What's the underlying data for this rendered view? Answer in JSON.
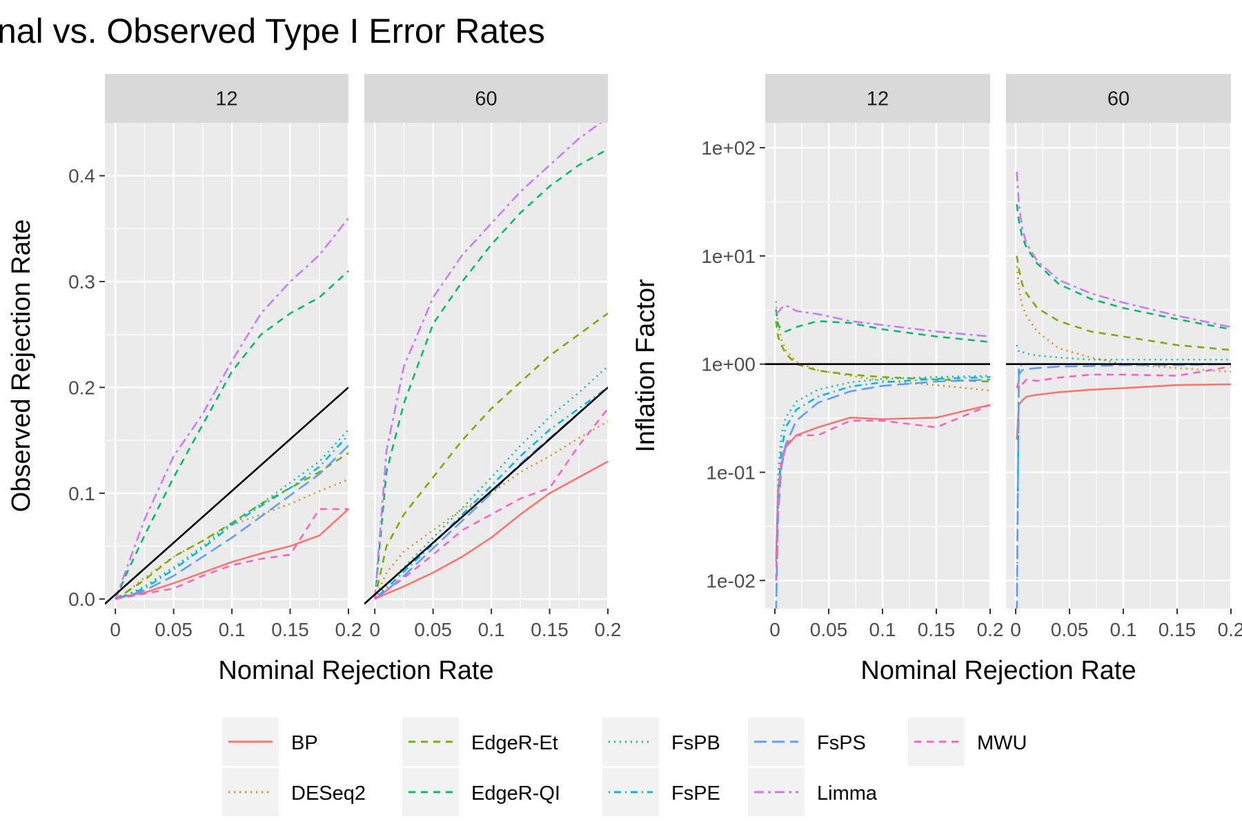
{
  "title": "nal vs. Observed Type I Error Rates",
  "legend": [
    {
      "label": "BP",
      "color": "#F8766D",
      "dash": "solid"
    },
    {
      "label": "DESeq2",
      "color": "#CD9600",
      "dash": "dotted"
    },
    {
      "label": "EdgeR-Et",
      "color": "#7CAE00",
      "dash": "dashed"
    },
    {
      "label": "EdgeR-QI",
      "color": "#00BE67",
      "dash": "dashed"
    },
    {
      "label": "FsPB",
      "color": "#00C19A",
      "dash": "dotted"
    },
    {
      "label": "FsPE",
      "color": "#00B8E7",
      "dash": "dotdash"
    },
    {
      "label": "FsPS",
      "color": "#619CFF",
      "dash": "longdash"
    },
    {
      "label": "Limma",
      "color": "#C77CFF",
      "dash": "twodash"
    },
    {
      "label": "MWU",
      "color": "#FF61C3",
      "dash": "dashed"
    }
  ],
  "chart_data": [
    {
      "type": "line",
      "panel": "left",
      "facets": [
        "12",
        "60"
      ],
      "xlabel": "Nominal Rejection Rate",
      "ylabel": "Observed Rejection Rate",
      "xlim": [
        -0.009,
        0.2
      ],
      "ylim": [
        -0.009,
        0.45
      ],
      "x_ticks": [
        "0",
        "0.05",
        "0.1",
        "0.15",
        "0.2"
      ],
      "y_ticks": [
        "0.0",
        "0.1",
        "0.2",
        "0.3",
        "0.4"
      ],
      "reference_line": "y = x",
      "x": [
        0,
        0.01,
        0.025,
        0.05,
        0.075,
        0.1,
        0.125,
        0.15,
        0.175,
        0.2
      ],
      "facet_series": {
        "12": [
          {
            "name": "BP",
            "values": [
              0,
              0.003,
              0.006,
              0.015,
              0.025,
              0.035,
              0.043,
              0.05,
              0.06,
              0.085
            ]
          },
          {
            "name": "DESeq2",
            "values": [
              0,
              0.007,
              0.02,
              0.04,
              0.055,
              0.07,
              0.08,
              0.09,
              0.102,
              0.113
            ]
          },
          {
            "name": "EdgeR-Et",
            "values": [
              0,
              0.007,
              0.018,
              0.04,
              0.055,
              0.072,
              0.09,
              0.105,
              0.12,
              0.138
            ]
          },
          {
            "name": "EdgeR-QI",
            "values": [
              0,
              0.025,
              0.06,
              0.115,
              0.165,
              0.215,
              0.25,
              0.27,
              0.285,
              0.31
            ]
          },
          {
            "name": "FsPB",
            "values": [
              0,
              0.004,
              0.012,
              0.03,
              0.05,
              0.072,
              0.09,
              0.11,
              0.13,
              0.16
            ]
          },
          {
            "name": "FsPE",
            "values": [
              0,
              0.004,
              0.01,
              0.028,
              0.048,
              0.07,
              0.088,
              0.105,
              0.125,
              0.155
            ]
          },
          {
            "name": "FsPS",
            "values": [
              0,
              0.003,
              0.008,
              0.022,
              0.04,
              0.058,
              0.078,
              0.098,
              0.118,
              0.145
            ]
          },
          {
            "name": "Limma",
            "values": [
              0,
              0.03,
              0.075,
              0.135,
              0.175,
              0.225,
              0.27,
              0.3,
              0.325,
              0.36
            ]
          },
          {
            "name": "MWU",
            "values": [
              0,
              0.002,
              0.005,
              0.01,
              0.022,
              0.032,
              0.038,
              0.042,
              0.085,
              0.085
            ]
          }
        ],
        "60": [
          {
            "name": "BP",
            "values": [
              0,
              0.005,
              0.012,
              0.025,
              0.04,
              0.058,
              0.08,
              0.1,
              0.115,
              0.13
            ]
          },
          {
            "name": "DESeq2",
            "values": [
              0,
              0.025,
              0.045,
              0.065,
              0.085,
              0.1,
              0.12,
              0.135,
              0.152,
              0.168
            ]
          },
          {
            "name": "EdgeR-Et",
            "values": [
              0,
              0.05,
              0.08,
              0.115,
              0.15,
              0.18,
              0.205,
              0.23,
              0.25,
              0.27
            ]
          },
          {
            "name": "EdgeR-QI",
            "values": [
              0,
              0.12,
              0.185,
              0.26,
              0.3,
              0.335,
              0.365,
              0.39,
              0.41,
              0.425
            ]
          },
          {
            "name": "FsPB",
            "values": [
              0,
              0.013,
              0.03,
              0.058,
              0.086,
              0.115,
              0.145,
              0.172,
              0.195,
              0.22
            ]
          },
          {
            "name": "FsPE",
            "values": [
              0,
              0.01,
              0.026,
              0.052,
              0.08,
              0.107,
              0.135,
              0.16,
              0.18,
              0.2
            ]
          },
          {
            "name": "FsPS",
            "values": [
              0,
              0.008,
              0.022,
              0.048,
              0.074,
              0.1,
              0.128,
              0.152,
              0.176,
              0.2
            ]
          },
          {
            "name": "Limma",
            "values": [
              0,
              0.14,
              0.22,
              0.285,
              0.325,
              0.355,
              0.385,
              0.41,
              0.435,
              0.455
            ]
          },
          {
            "name": "MWU",
            "values": [
              0,
              0.008,
              0.02,
              0.042,
              0.065,
              0.08,
              0.095,
              0.105,
              0.145,
              0.18
            ]
          }
        ]
      }
    },
    {
      "type": "line",
      "panel": "right",
      "facets": [
        "12",
        "60"
      ],
      "xlabel": "Nominal Rejection Rate",
      "ylabel": "Inflation Factor",
      "y_scale": "log10",
      "xlim": [
        -0.009,
        0.2
      ],
      "ylim": [
        0.0055,
        170
      ],
      "x_ticks": [
        "0",
        "0.05",
        "0.1",
        "0.15",
        "0.2"
      ],
      "y_ticks": [
        "1e-02",
        "1e-01",
        "1e+00",
        "1e+01",
        "1e+02"
      ],
      "reference_line": "y = 1",
      "x": [
        0.001,
        0.003,
        0.006,
        0.01,
        0.02,
        0.04,
        0.07,
        0.1,
        0.15,
        0.2
      ],
      "facet_series": {
        "12": [
          {
            "name": "BP",
            "values": [
              0.015,
              0.07,
              0.12,
              0.17,
              0.22,
              0.26,
              0.32,
              0.31,
              0.32,
              0.42
            ]
          },
          {
            "name": "DESeq2",
            "values": [
              3.8,
              2.3,
              1.7,
              1.35,
              1.05,
              0.88,
              0.78,
              0.7,
              0.64,
              0.57
            ]
          },
          {
            "name": "EdgeR-Et",
            "values": [
              2.5,
              1.8,
              1.5,
              1.25,
              1.0,
              0.87,
              0.8,
              0.76,
              0.72,
              0.69
            ]
          },
          {
            "name": "EdgeR-QI",
            "values": [
              3.2,
              2.3,
              2.1,
              2.0,
              2.2,
              2.5,
              2.4,
              2.1,
              1.8,
              1.6
            ]
          },
          {
            "name": "FsPB",
            "values": [
              0.005,
              0.1,
              0.22,
              0.32,
              0.45,
              0.58,
              0.68,
              0.73,
              0.76,
              0.78
            ]
          },
          {
            "name": "FsPE",
            "values": [
              0.005,
              0.06,
              0.16,
              0.26,
              0.38,
              0.5,
              0.62,
              0.68,
              0.73,
              0.76
            ]
          },
          {
            "name": "FsPS",
            "values": [
              0.005,
              0.04,
              0.11,
              0.18,
              0.3,
              0.44,
              0.56,
              0.63,
              0.69,
              0.72
            ]
          },
          {
            "name": "Limma",
            "values": [
              3.0,
              3.0,
              3.3,
              3.5,
              3.1,
              2.9,
              2.5,
              2.3,
              2.0,
              1.8
            ]
          },
          {
            "name": "MWU",
            "values": [
              0.01,
              0.06,
              0.13,
              0.18,
              0.22,
              0.22,
              0.3,
              0.3,
              0.26,
              0.42
            ]
          }
        ],
        "60": [
          {
            "name": "BP",
            "values": [
              0.2,
              0.42,
              0.46,
              0.5,
              0.52,
              0.55,
              0.58,
              0.6,
              0.64,
              0.65
            ]
          },
          {
            "name": "DESeq2",
            "values": [
              8,
              5,
              3.5,
              2.8,
              2.0,
              1.4,
              1.15,
              1.0,
              0.92,
              0.85
            ]
          },
          {
            "name": "EdgeR-Et",
            "values": [
              10,
              7.5,
              5.5,
              4.5,
              3.3,
              2.5,
              2.0,
              1.8,
              1.5,
              1.35
            ]
          },
          {
            "name": "EdgeR-QI",
            "values": [
              30,
              21,
              15,
              12,
              8.5,
              5.5,
              4.0,
              3.3,
              2.6,
              2.1
            ]
          },
          {
            "name": "FsPB",
            "values": [
              1.5,
              1.3,
              1.3,
              1.25,
              1.2,
              1.15,
              1.1,
              1.1,
              1.1,
              1.1
            ]
          },
          {
            "name": "FsPE",
            "values": [
              0.005,
              0.95,
              1.0,
              1.0,
              1.0,
              1.0,
              1.0,
              1.0,
              1.0,
              1.0
            ]
          },
          {
            "name": "FsPS",
            "values": [
              0.005,
              0.8,
              0.88,
              0.9,
              0.92,
              0.95,
              0.96,
              0.98,
              0.98,
              1.0
            ]
          },
          {
            "name": "Limma",
            "values": [
              60,
              30,
              18,
              13,
              9.0,
              6.0,
              4.5,
              3.7,
              2.8,
              2.2
            ]
          },
          {
            "name": "MWU",
            "values": [
              0.6,
              0.7,
              0.65,
              0.72,
              0.7,
              0.75,
              0.8,
              0.8,
              0.78,
              0.95
            ]
          }
        ]
      }
    }
  ]
}
